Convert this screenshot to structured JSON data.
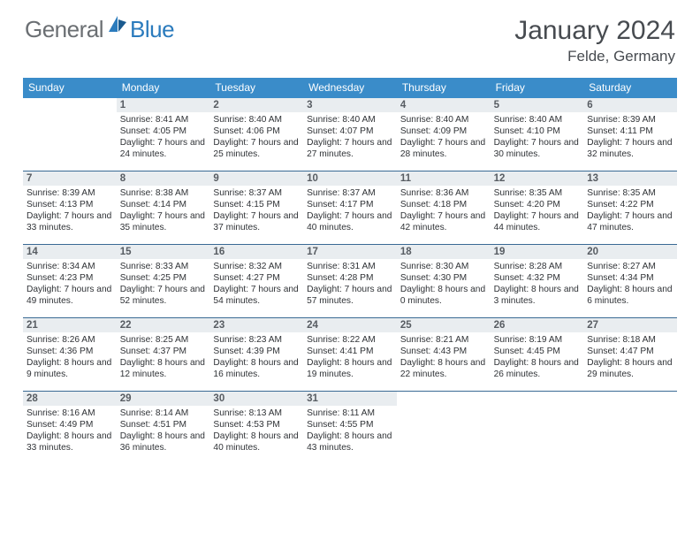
{
  "logo": {
    "part1": "General",
    "part2": "Blue"
  },
  "header": {
    "title": "January 2024",
    "location": "Felde, Germany"
  },
  "colors": {
    "header_bg": "#3a8cc9",
    "divider": "#3a6a94",
    "daybar_bg": "#e9edf0",
    "text_dark": "#2f3236",
    "text_mid": "#474b50"
  },
  "dow": [
    "Sunday",
    "Monday",
    "Tuesday",
    "Wednesday",
    "Thursday",
    "Friday",
    "Saturday"
  ],
  "weeks": [
    [
      {
        "n": "",
        "sr": "",
        "ss": "",
        "dl": ""
      },
      {
        "n": "1",
        "sr": "8:41 AM",
        "ss": "4:05 PM",
        "dl": "7 hours and 24 minutes."
      },
      {
        "n": "2",
        "sr": "8:40 AM",
        "ss": "4:06 PM",
        "dl": "7 hours and 25 minutes."
      },
      {
        "n": "3",
        "sr": "8:40 AM",
        "ss": "4:07 PM",
        "dl": "7 hours and 27 minutes."
      },
      {
        "n": "4",
        "sr": "8:40 AM",
        "ss": "4:09 PM",
        "dl": "7 hours and 28 minutes."
      },
      {
        "n": "5",
        "sr": "8:40 AM",
        "ss": "4:10 PM",
        "dl": "7 hours and 30 minutes."
      },
      {
        "n": "6",
        "sr": "8:39 AM",
        "ss": "4:11 PM",
        "dl": "7 hours and 32 minutes."
      }
    ],
    [
      {
        "n": "7",
        "sr": "8:39 AM",
        "ss": "4:13 PM",
        "dl": "7 hours and 33 minutes."
      },
      {
        "n": "8",
        "sr": "8:38 AM",
        "ss": "4:14 PM",
        "dl": "7 hours and 35 minutes."
      },
      {
        "n": "9",
        "sr": "8:37 AM",
        "ss": "4:15 PM",
        "dl": "7 hours and 37 minutes."
      },
      {
        "n": "10",
        "sr": "8:37 AM",
        "ss": "4:17 PM",
        "dl": "7 hours and 40 minutes."
      },
      {
        "n": "11",
        "sr": "8:36 AM",
        "ss": "4:18 PM",
        "dl": "7 hours and 42 minutes."
      },
      {
        "n": "12",
        "sr": "8:35 AM",
        "ss": "4:20 PM",
        "dl": "7 hours and 44 minutes."
      },
      {
        "n": "13",
        "sr": "8:35 AM",
        "ss": "4:22 PM",
        "dl": "7 hours and 47 minutes."
      }
    ],
    [
      {
        "n": "14",
        "sr": "8:34 AM",
        "ss": "4:23 PM",
        "dl": "7 hours and 49 minutes."
      },
      {
        "n": "15",
        "sr": "8:33 AM",
        "ss": "4:25 PM",
        "dl": "7 hours and 52 minutes."
      },
      {
        "n": "16",
        "sr": "8:32 AM",
        "ss": "4:27 PM",
        "dl": "7 hours and 54 minutes."
      },
      {
        "n": "17",
        "sr": "8:31 AM",
        "ss": "4:28 PM",
        "dl": "7 hours and 57 minutes."
      },
      {
        "n": "18",
        "sr": "8:30 AM",
        "ss": "4:30 PM",
        "dl": "8 hours and 0 minutes."
      },
      {
        "n": "19",
        "sr": "8:28 AM",
        "ss": "4:32 PM",
        "dl": "8 hours and 3 minutes."
      },
      {
        "n": "20",
        "sr": "8:27 AM",
        "ss": "4:34 PM",
        "dl": "8 hours and 6 minutes."
      }
    ],
    [
      {
        "n": "21",
        "sr": "8:26 AM",
        "ss": "4:36 PM",
        "dl": "8 hours and 9 minutes."
      },
      {
        "n": "22",
        "sr": "8:25 AM",
        "ss": "4:37 PM",
        "dl": "8 hours and 12 minutes."
      },
      {
        "n": "23",
        "sr": "8:23 AM",
        "ss": "4:39 PM",
        "dl": "8 hours and 16 minutes."
      },
      {
        "n": "24",
        "sr": "8:22 AM",
        "ss": "4:41 PM",
        "dl": "8 hours and 19 minutes."
      },
      {
        "n": "25",
        "sr": "8:21 AM",
        "ss": "4:43 PM",
        "dl": "8 hours and 22 minutes."
      },
      {
        "n": "26",
        "sr": "8:19 AM",
        "ss": "4:45 PM",
        "dl": "8 hours and 26 minutes."
      },
      {
        "n": "27",
        "sr": "8:18 AM",
        "ss": "4:47 PM",
        "dl": "8 hours and 29 minutes."
      }
    ],
    [
      {
        "n": "28",
        "sr": "8:16 AM",
        "ss": "4:49 PM",
        "dl": "8 hours and 33 minutes."
      },
      {
        "n": "29",
        "sr": "8:14 AM",
        "ss": "4:51 PM",
        "dl": "8 hours and 36 minutes."
      },
      {
        "n": "30",
        "sr": "8:13 AM",
        "ss": "4:53 PM",
        "dl": "8 hours and 40 minutes."
      },
      {
        "n": "31",
        "sr": "8:11 AM",
        "ss": "4:55 PM",
        "dl": "8 hours and 43 minutes."
      },
      {
        "n": "",
        "sr": "",
        "ss": "",
        "dl": ""
      },
      {
        "n": "",
        "sr": "",
        "ss": "",
        "dl": ""
      },
      {
        "n": "",
        "sr": "",
        "ss": "",
        "dl": ""
      }
    ]
  ],
  "labels": {
    "sunrise": "Sunrise: ",
    "sunset": "Sunset: ",
    "daylight": "Daylight: "
  }
}
